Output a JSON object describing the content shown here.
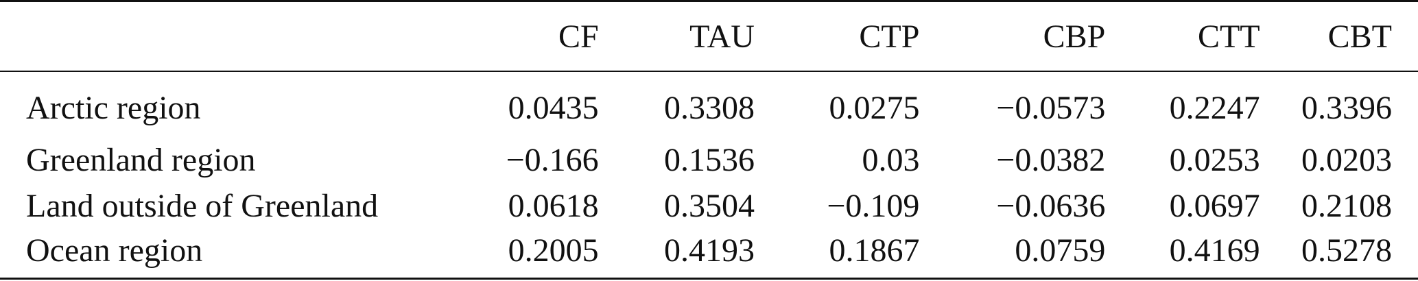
{
  "table": {
    "columns": [
      "",
      "CF",
      "TAU",
      "CTP",
      "CBP",
      "CTT",
      "CBT"
    ],
    "rows": [
      {
        "label": "Arctic region",
        "values": [
          "0.0435",
          "0.3308",
          "0.0275",
          "−0.0573",
          "0.2247",
          "0.3396"
        ]
      },
      {
        "label": "Greenland region",
        "values": [
          "−0.166",
          "0.1536",
          "0.03",
          "−0.0382",
          "0.0253",
          "0.0203"
        ]
      },
      {
        "label": "Land outside of Greenland",
        "values": [
          "0.0618",
          "0.3504",
          "−0.109",
          "−0.0636",
          "0.0697",
          "0.2108"
        ]
      },
      {
        "label": "Ocean region",
        "values": [
          "0.2005",
          "0.4193",
          "0.1867",
          "0.0759",
          "0.4169",
          "0.5278"
        ]
      }
    ]
  }
}
